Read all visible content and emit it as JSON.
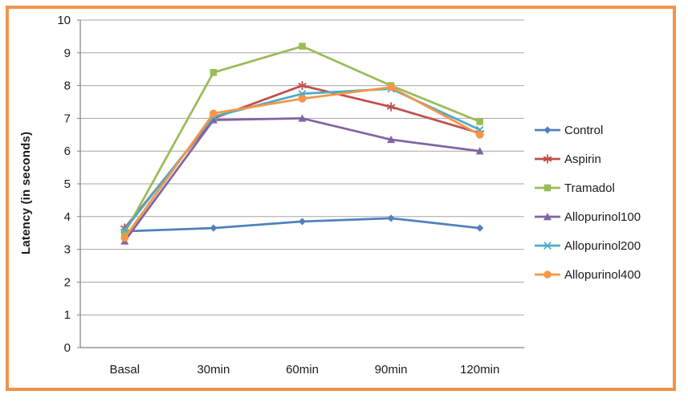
{
  "frame": {
    "border_color": "#F0944A",
    "background": "#FFFFFF"
  },
  "chart_data": {
    "type": "line",
    "categories": [
      "Basal",
      "30min",
      "60min",
      "90min",
      "120min"
    ],
    "series": [
      {
        "name": "Control",
        "color": "#4F81BD",
        "marker": "diamond",
        "values": [
          3.55,
          3.65,
          3.85,
          3.95,
          3.65
        ]
      },
      {
        "name": "Aspirin",
        "color": "#C0504D",
        "marker": "asterisk",
        "values": [
          3.65,
          7.0,
          8.0,
          7.35,
          6.55
        ]
      },
      {
        "name": "Tramadol",
        "color": "#9BBB59",
        "marker": "square",
        "values": [
          3.5,
          8.4,
          9.2,
          8.0,
          6.9
        ]
      },
      {
        "name": "Allopurinol100",
        "color": "#8064A2",
        "marker": "triangle",
        "values": [
          3.25,
          6.95,
          7.0,
          6.35,
          6.0
        ]
      },
      {
        "name": "Allopurinol200",
        "color": "#4BACC6",
        "marker": "x",
        "values": [
          3.6,
          7.05,
          7.75,
          7.9,
          6.65
        ]
      },
      {
        "name": "Allopurinol400",
        "color": "#F79646",
        "marker": "circle",
        "values": [
          3.35,
          7.15,
          7.6,
          7.95,
          6.5
        ]
      }
    ],
    "title": "",
    "xlabel": "",
    "ylabel": "Latency (in seconds)",
    "ylim": [
      0,
      10
    ],
    "yticks": [
      0,
      1,
      2,
      3,
      4,
      5,
      6,
      7,
      8,
      9,
      10
    ],
    "grid": true,
    "legend_position": "right",
    "axis_color": "#808080",
    "grid_color": "#A6A6A6",
    "text_color": "#1A1A1A"
  }
}
